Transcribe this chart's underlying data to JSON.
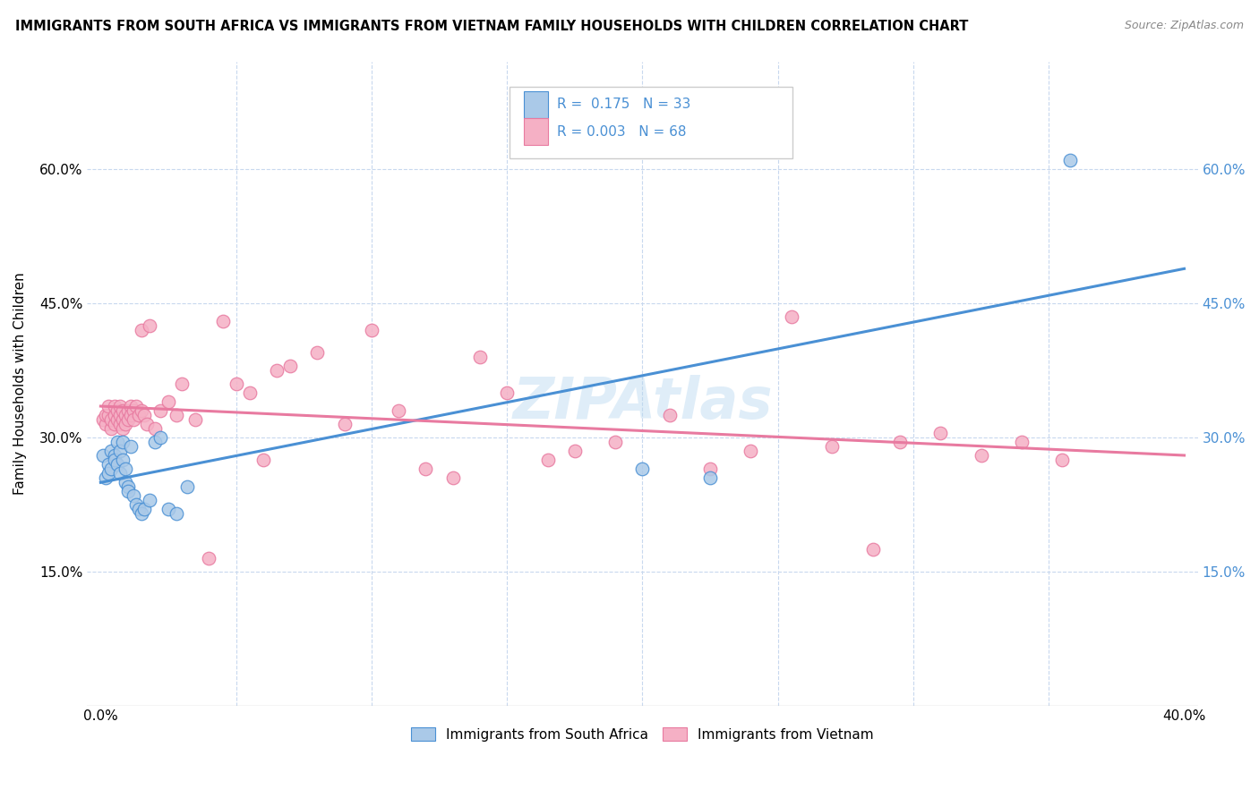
{
  "title": "IMMIGRANTS FROM SOUTH AFRICA VS IMMIGRANTS FROM VIETNAM FAMILY HOUSEHOLDS WITH CHILDREN CORRELATION CHART",
  "source": "Source: ZipAtlas.com",
  "ylabel": "Family Households with Children",
  "xlim": [
    -0.005,
    0.405
  ],
  "ylim": [
    0.0,
    0.72
  ],
  "x_ticks": [
    0.0,
    0.05,
    0.1,
    0.15,
    0.2,
    0.25,
    0.3,
    0.35,
    0.4
  ],
  "y_ticks": [
    0.0,
    0.15,
    0.3,
    0.45,
    0.6
  ],
  "y_tick_labels_left": [
    "",
    "15.0%",
    "30.0%",
    "45.0%",
    "60.0%"
  ],
  "y_tick_labels_right": [
    "",
    "15.0%",
    "30.0%",
    "45.0%",
    "60.0%"
  ],
  "watermark": "ZIPAtlas",
  "color_sa": "#aac9e8",
  "color_vn": "#f5b0c5",
  "line_color_sa": "#4a90d4",
  "line_color_vn": "#e87aa0",
  "background_color": "#ffffff",
  "grid_color": "#c8d8ee",
  "south_africa_x": [
    0.001,
    0.002,
    0.003,
    0.003,
    0.004,
    0.004,
    0.005,
    0.005,
    0.006,
    0.006,
    0.007,
    0.007,
    0.008,
    0.008,
    0.009,
    0.009,
    0.01,
    0.01,
    0.011,
    0.012,
    0.013,
    0.014,
    0.015,
    0.016,
    0.018,
    0.02,
    0.022,
    0.025,
    0.028,
    0.032,
    0.2,
    0.225,
    0.358
  ],
  "south_africa_y": [
    0.28,
    0.255,
    0.27,
    0.26,
    0.285,
    0.265,
    0.28,
    0.275,
    0.295,
    0.27,
    0.26,
    0.285,
    0.275,
    0.295,
    0.25,
    0.265,
    0.245,
    0.24,
    0.29,
    0.235,
    0.225,
    0.22,
    0.215,
    0.22,
    0.23,
    0.295,
    0.3,
    0.22,
    0.215,
    0.245,
    0.265,
    0.255,
    0.61
  ],
  "vietnam_x": [
    0.001,
    0.002,
    0.002,
    0.003,
    0.003,
    0.004,
    0.004,
    0.005,
    0.005,
    0.005,
    0.006,
    0.006,
    0.007,
    0.007,
    0.007,
    0.008,
    0.008,
    0.008,
    0.009,
    0.009,
    0.01,
    0.01,
    0.011,
    0.011,
    0.012,
    0.012,
    0.013,
    0.014,
    0.015,
    0.015,
    0.016,
    0.017,
    0.018,
    0.02,
    0.022,
    0.025,
    0.028,
    0.03,
    0.035,
    0.04,
    0.045,
    0.05,
    0.055,
    0.06,
    0.065,
    0.07,
    0.08,
    0.09,
    0.1,
    0.11,
    0.12,
    0.13,
    0.14,
    0.15,
    0.165,
    0.175,
    0.19,
    0.21,
    0.225,
    0.24,
    0.255,
    0.27,
    0.285,
    0.295,
    0.31,
    0.325,
    0.34,
    0.355
  ],
  "vietnam_y": [
    0.32,
    0.315,
    0.325,
    0.325,
    0.335,
    0.31,
    0.32,
    0.315,
    0.325,
    0.335,
    0.32,
    0.33,
    0.315,
    0.325,
    0.335,
    0.32,
    0.33,
    0.31,
    0.325,
    0.315,
    0.33,
    0.32,
    0.335,
    0.325,
    0.33,
    0.32,
    0.335,
    0.325,
    0.42,
    0.33,
    0.325,
    0.315,
    0.425,
    0.31,
    0.33,
    0.34,
    0.325,
    0.36,
    0.32,
    0.165,
    0.43,
    0.36,
    0.35,
    0.275,
    0.375,
    0.38,
    0.395,
    0.315,
    0.42,
    0.33,
    0.265,
    0.255,
    0.39,
    0.35,
    0.275,
    0.285,
    0.295,
    0.325,
    0.265,
    0.285,
    0.435,
    0.29,
    0.175,
    0.295,
    0.305,
    0.28,
    0.295,
    0.275
  ]
}
